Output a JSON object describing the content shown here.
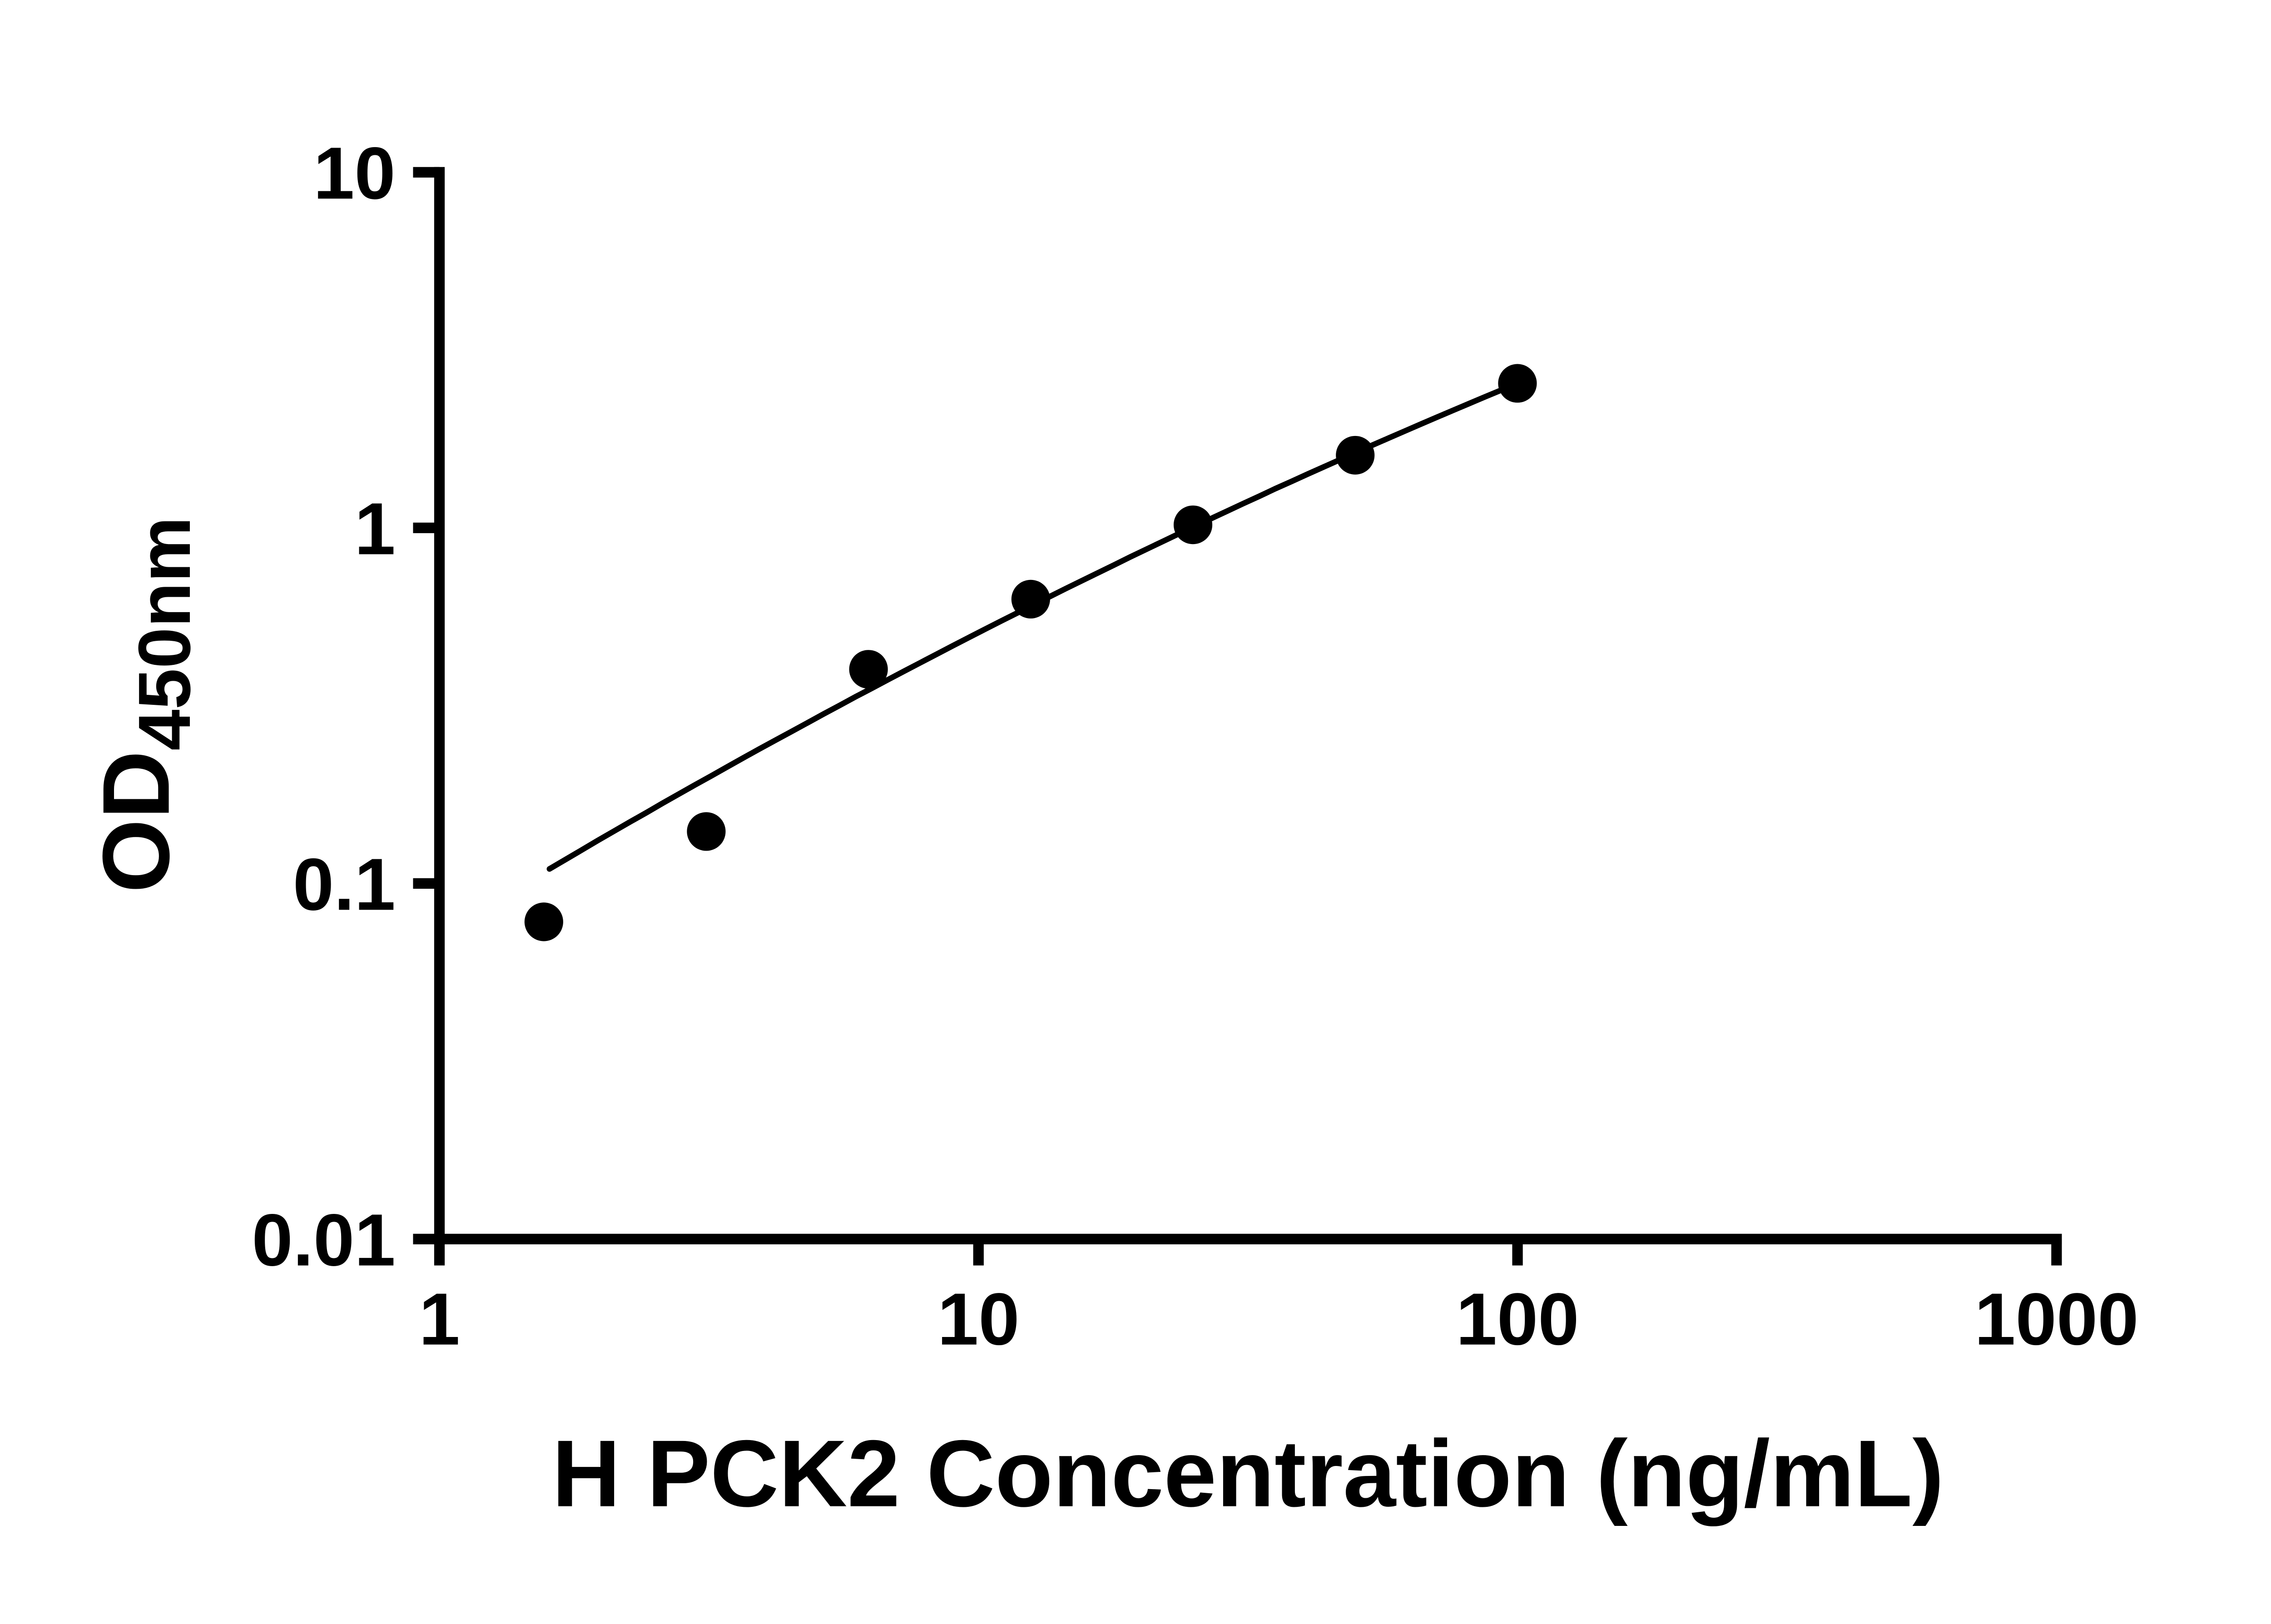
{
  "figure": {
    "background": "#ffffff",
    "foreground": "#000000"
  },
  "chart_data": {
    "type": "scatter",
    "title": "",
    "xlabel": "H PCK2 Concentration (ng/mL)",
    "ylabel": "OD",
    "ylabel_subscript": "450nm",
    "x_scale": "log10",
    "y_scale": "log10",
    "xlim": [
      1,
      1000
    ],
    "ylim": [
      0.01,
      10
    ],
    "x_ticks": [
      1,
      10,
      100,
      1000
    ],
    "x_tick_labels": [
      "1",
      "10",
      "100",
      "1000"
    ],
    "y_ticks": [
      0.01,
      0.1,
      1,
      10
    ],
    "y_tick_labels": [
      "0.01",
      "0.1",
      "1",
      "10"
    ],
    "grid": false,
    "legend": false,
    "series": [
      {
        "marker": "circle",
        "marker_radius": 11,
        "color": "#000000",
        "points": [
          {
            "x": 1.5625,
            "y": 0.078
          },
          {
            "x": 3.125,
            "y": 0.14
          },
          {
            "x": 6.25,
            "y": 0.4
          },
          {
            "x": 12.5,
            "y": 0.63
          },
          {
            "x": 25,
            "y": 1.02
          },
          {
            "x": 50,
            "y": 1.6
          },
          {
            "x": 100,
            "y": 2.55
          }
        ]
      }
    ],
    "trend_line": {
      "style": "solid",
      "color": "#000000",
      "x_start": 1.6,
      "x_end": 100,
      "log10_poly_coeffs": [
        -1.1446,
        0.9247,
        -0.0746
      ]
    }
  }
}
